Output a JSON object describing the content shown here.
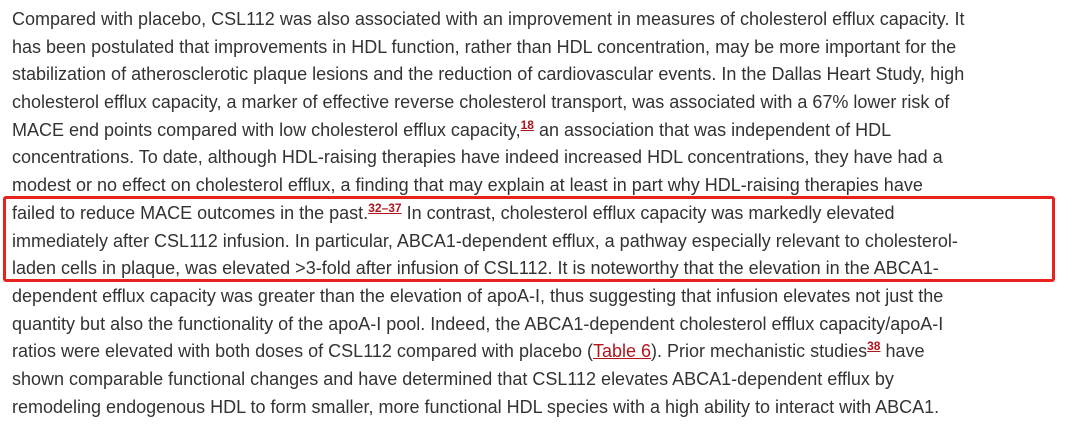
{
  "paragraph": {
    "lines": [
      [
        {
          "text": "Compared with placebo, CSL112 was also associated with an improvement in measures of cholesterol efflux capacity. It"
        }
      ],
      [
        {
          "text": "has been postulated that improvements in HDL function, rather than HDL concentration, may be more important for the"
        }
      ],
      [
        {
          "text": "stabilization of atherosclerotic plaque lesions and the reduction of cardiovascular events. In the Dallas Heart Study, high"
        }
      ],
      [
        {
          "text": "cholesterol efflux capacity, a marker of effective reverse cholesterol transport, was associated with a 67% lower risk of"
        }
      ],
      [
        {
          "text": "MACE end points compared with low cholesterol efflux capacity,"
        },
        {
          "text": "18",
          "link": true,
          "sup": true
        },
        {
          "text": " an association that was independent of HDL"
        }
      ],
      [
        {
          "text": "concentrations. To date, although HDL-raising therapies have indeed increased HDL concentrations, they have had a"
        }
      ],
      [
        {
          "text": "modest or no effect on cholesterol efflux, a finding that may explain at least in part why HDL-raising therapies have"
        }
      ],
      [
        {
          "text": "failed to reduce MACE outcomes in the past."
        },
        {
          "text": "32–37",
          "link": true,
          "sup": true
        },
        {
          "text": " In contrast, cholesterol efflux capacity was markedly elevated"
        }
      ],
      [
        {
          "text": "immediately after CSL112 infusion. In particular, ABCA1-dependent efflux, a pathway especially relevant to cholesterol-"
        }
      ],
      [
        {
          "text": "laden cells in plaque, was elevated >3-fold after infusion of CSL112. It is noteworthy that the elevation in the ABCA1-"
        }
      ],
      [
        {
          "text": "dependent efflux capacity was greater than the elevation of apoA-I, thus suggesting that infusion elevates not just the"
        }
      ],
      [
        {
          "text": "quantity but also the functionality of the apoA-I pool. Indeed, the ABCA1-dependent cholesterol efflux capacity/apoA-I"
        }
      ],
      [
        {
          "text": "ratios were elevated with both doses of CSL112 compared with placebo ("
        },
        {
          "text": "Table 6",
          "link": true
        },
        {
          "text": "). Prior mechanistic studies"
        },
        {
          "text": "38",
          "link": true,
          "sup": true
        },
        {
          "text": " have"
        }
      ],
      [
        {
          "text": "shown comparable functional changes and have determined that CSL112 elevates ABCA1-dependent efflux by"
        }
      ],
      [
        {
          "text": "remodeling endogenous HDL to form smaller, more functional HDL species with a high ability to interact with ABCA1."
        }
      ]
    ]
  }
}
